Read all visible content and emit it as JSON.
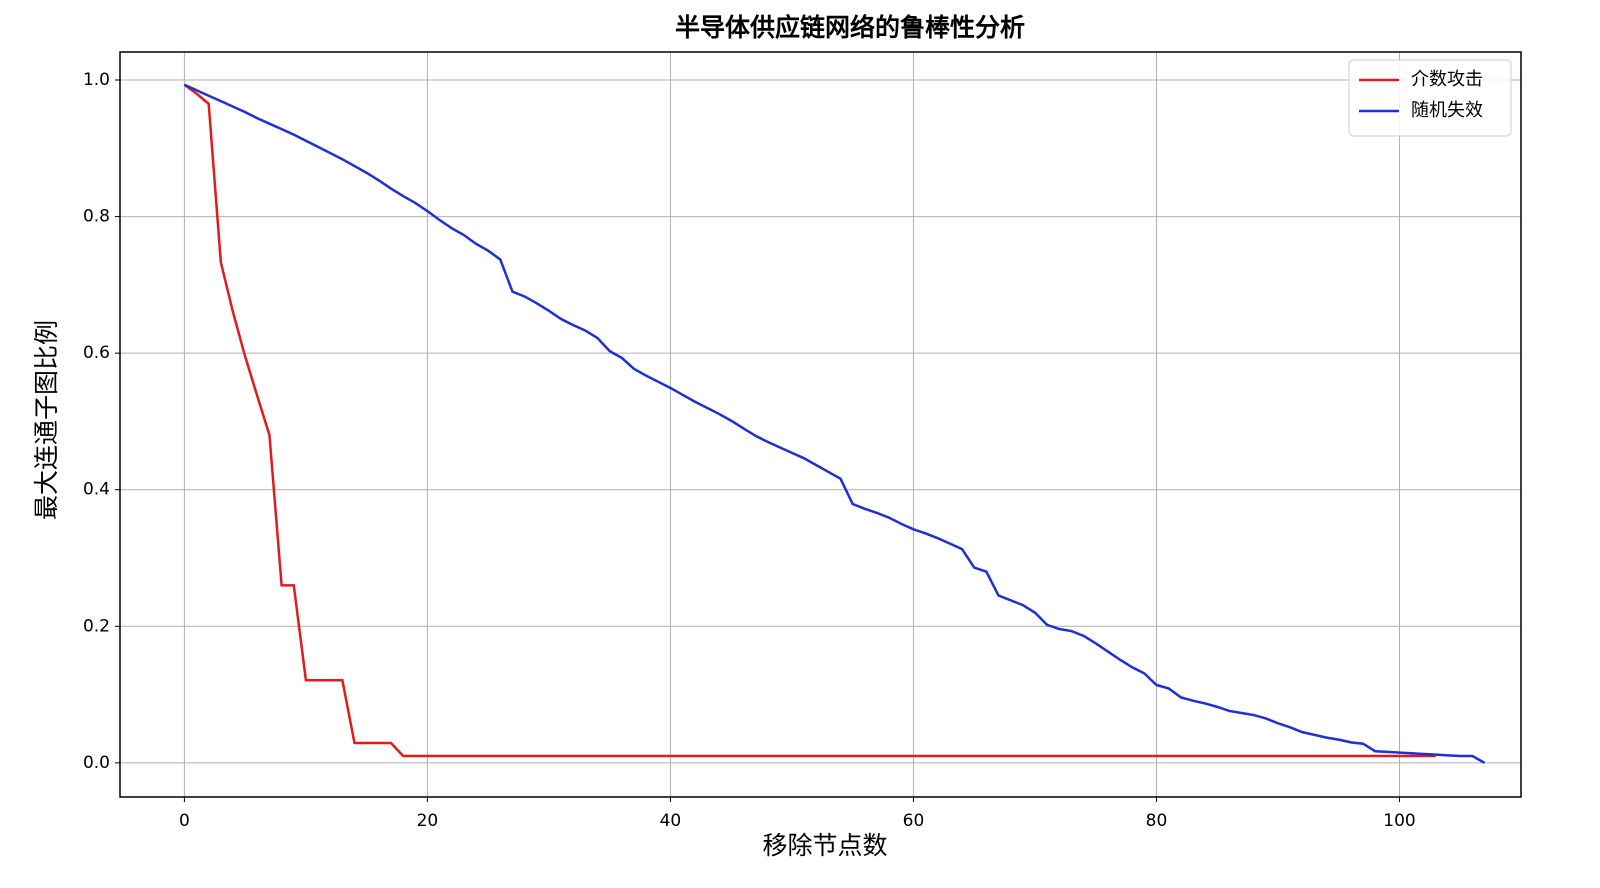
{
  "chart_data": {
    "type": "line",
    "title": "半导体供应链网络的鲁棒性分析",
    "x_label": "移除节点数",
    "y_label": "最大连通子图比例",
    "x": [
      0,
      1,
      2,
      3,
      4,
      5,
      6,
      7,
      8,
      9,
      10,
      11,
      12,
      13,
      14,
      15,
      16,
      17,
      18,
      19,
      20,
      21,
      22,
      23,
      24,
      25,
      26,
      27,
      28,
      29,
      30,
      31,
      32,
      33,
      34,
      35,
      36,
      37,
      38,
      39,
      40,
      41,
      42,
      43,
      44,
      45,
      46,
      47,
      48,
      49,
      50,
      51,
      52,
      53,
      54,
      55,
      56,
      57,
      58,
      59,
      60,
      61,
      62,
      63,
      64,
      65,
      66,
      67,
      68,
      69,
      70,
      71,
      72,
      73,
      74,
      75,
      76,
      77,
      78,
      79,
      80,
      81,
      82,
      83,
      84,
      85,
      86,
      87,
      88,
      89,
      90,
      91,
      92,
      93,
      94,
      95,
      96,
      97,
      98,
      99,
      100,
      101,
      102,
      103,
      104,
      105,
      106,
      107
    ],
    "series": [
      {
        "name": "介数攻击",
        "color": "#e31a1c",
        "values": [
          0.993,
          0.98,
          0.965,
          0.733,
          0.66,
          0.595,
          0.537,
          0.48,
          0.26,
          0.26,
          0.121,
          0.121,
          0.121,
          0.121,
          0.029,
          0.029,
          0.029,
          0.029,
          0.01,
          0.01,
          0.01,
          0.01,
          0.01,
          0.01,
          0.01,
          0.01,
          0.01,
          0.01,
          0.01,
          0.01,
          0.01,
          0.01,
          0.01,
          0.01,
          0.01,
          0.01,
          0.01,
          0.01,
          0.01,
          0.01,
          0.01,
          0.01,
          0.01,
          0.01,
          0.01,
          0.01,
          0.01,
          0.01,
          0.01,
          0.01,
          0.01,
          0.01,
          0.01,
          0.01,
          0.01,
          0.01,
          0.01,
          0.01,
          0.01,
          0.01,
          0.01,
          0.01,
          0.01,
          0.01,
          0.01,
          0.01,
          0.01,
          0.01,
          0.01,
          0.01,
          0.01,
          0.01,
          0.01,
          0.01,
          0.01,
          0.01,
          0.01,
          0.01,
          0.01,
          0.01,
          0.01,
          0.01,
          0.01,
          0.01,
          0.01,
          0.01,
          0.01,
          0.01,
          0.01,
          0.01,
          0.01,
          0.01,
          0.01,
          0.01,
          0.01,
          0.01,
          0.01,
          0.01,
          0.01,
          0.01,
          0.01,
          0.01,
          0.01,
          0.01,
          null,
          null,
          null,
          null
        ]
      },
      {
        "name": "随机失效",
        "color": "#1f2fd6",
        "values": [
          0.993,
          0.985,
          0.977,
          0.969,
          0.961,
          0.953,
          0.944,
          0.936,
          0.928,
          0.92,
          0.911,
          0.902,
          0.893,
          0.884,
          0.874,
          0.864,
          0.853,
          0.841,
          0.83,
          0.82,
          0.808,
          0.795,
          0.783,
          0.773,
          0.76,
          0.75,
          0.737,
          0.69,
          0.683,
          0.673,
          0.662,
          0.65,
          0.641,
          0.633,
          0.622,
          0.603,
          0.593,
          0.577,
          0.567,
          0.558,
          0.549,
          0.539,
          0.529,
          0.52,
          0.511,
          0.501,
          0.49,
          0.479,
          0.47,
          0.462,
          0.454,
          0.446,
          0.436,
          0.426,
          0.416,
          0.379,
          0.372,
          0.366,
          0.359,
          0.35,
          0.342,
          0.336,
          0.329,
          0.321,
          0.313,
          0.286,
          0.28,
          0.245,
          0.238,
          0.231,
          0.22,
          0.202,
          0.196,
          0.193,
          0.186,
          0.175,
          0.163,
          0.151,
          0.14,
          0.131,
          0.114,
          0.109,
          0.096,
          0.091,
          0.087,
          0.082,
          0.076,
          0.073,
          0.07,
          0.065,
          0.058,
          0.052,
          0.045,
          0.041,
          0.037,
          0.034,
          0.03,
          0.028,
          0.017,
          0.016,
          0.015,
          0.014,
          0.013,
          0.012,
          0.011,
          0.01,
          0.01,
          0
        ]
      }
    ],
    "xlim": [
      -5.3,
      110
    ],
    "ylim": [
      -0.05,
      1.041
    ],
    "xticks": [
      0,
      20,
      40,
      60,
      80,
      100
    ],
    "yticks": [
      {
        "value": 0,
        "label": "0.0"
      },
      0.2,
      0.4,
      0.6,
      0.8,
      {
        "value": 1,
        "label": "1.0"
      }
    ],
    "grid": true,
    "legend": "upper right"
  }
}
